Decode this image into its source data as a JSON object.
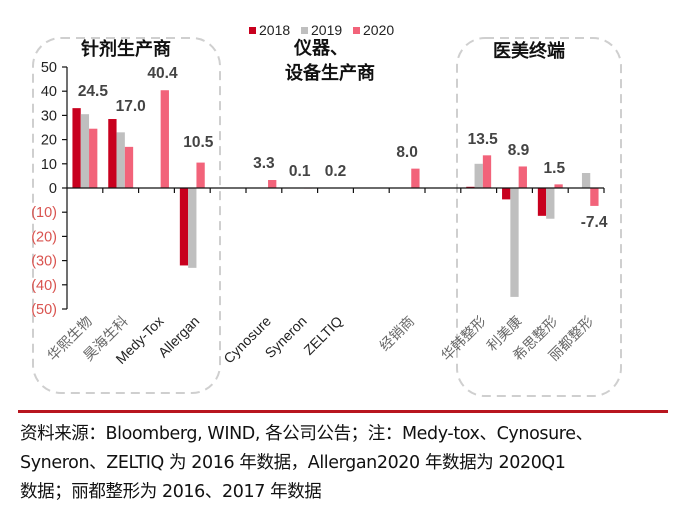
{
  "chart_data": {
    "type": "bar",
    "title": "",
    "xlabel": "",
    "ylabel": "",
    "ylim": [
      -50,
      50
    ],
    "yticks": [
      50,
      40,
      30,
      20,
      10,
      0,
      -10,
      -20,
      -30,
      -40,
      -50
    ],
    "ytick_labels": [
      "50",
      "40",
      "30",
      "20",
      "10",
      "0",
      "(10)",
      "(20)",
      "(30)",
      "(40)",
      "(50)"
    ],
    "grid": false,
    "legend_position": "top-center",
    "categories": [
      "华熙生物",
      "昊海生科",
      "Medy-Tox",
      "Allergan",
      "",
      "Cynosure",
      "Syneron",
      "ZELTIQ",
      "",
      "经销商",
      "",
      "华韩整形",
      "利美康",
      "希思整形",
      "丽都整形"
    ],
    "series": [
      {
        "name": "2018",
        "color": "#c8001e",
        "values": [
          33.0,
          28.5,
          null,
          -32.0,
          null,
          null,
          null,
          null,
          null,
          null,
          null,
          0.5,
          -4.7,
          -11.5,
          null
        ]
      },
      {
        "name": "2019",
        "color": "#bfbfbf",
        "values": [
          30.5,
          23.0,
          null,
          -33.0,
          null,
          null,
          null,
          null,
          null,
          null,
          null,
          10.0,
          -45.0,
          -12.7,
          6.2
        ]
      },
      {
        "name": "2020",
        "color": "#f2637a",
        "values": [
          24.5,
          17.0,
          40.4,
          10.5,
          null,
          3.3,
          0.1,
          0.2,
          null,
          8.0,
          null,
          13.5,
          8.9,
          1.5,
          -7.4
        ]
      }
    ],
    "data_labels": [
      {
        "category": "华熙生物",
        "series": "2020",
        "text": "24.5"
      },
      {
        "category": "昊海生科",
        "series": "2020",
        "text": "17.0"
      },
      {
        "category": "Medy-Tox",
        "series": "2020",
        "text": "40.4"
      },
      {
        "category": "Allergan",
        "series": "2020",
        "text": "10.5"
      },
      {
        "category": "Cynosure",
        "series": "2020",
        "text": "3.3"
      },
      {
        "category": "Syneron",
        "series": "2020",
        "text": "0.1"
      },
      {
        "category": "ZELTIQ",
        "series": "2020",
        "text": "0.2"
      },
      {
        "category": "经销商",
        "series": "2020",
        "text": "8.0"
      },
      {
        "category": "华韩整形",
        "series": "2020",
        "text": "13.5"
      },
      {
        "category": "利美康",
        "series": "2020",
        "text": "8.9"
      },
      {
        "category": "希思整形",
        "series": "2020",
        "text": "1.5"
      },
      {
        "category": "丽都整形",
        "series": "2020",
        "text": "-7.4"
      }
    ],
    "annotations": [
      {
        "text": "针剂生产商",
        "group_categories": [
          "华熙生物",
          "昊海生科",
          "Medy-Tox",
          "Allergan"
        ],
        "boxed": true
      },
      {
        "text": "仪器、\n设备生产商",
        "group_categories": [
          "Cynosure",
          "Syneron",
          "ZELTIQ"
        ],
        "boxed": false
      },
      {
        "text": "医美终端",
        "group_categories": [
          "华韩整形",
          "利美康",
          "希思整形",
          "丽都整形"
        ],
        "boxed": true
      }
    ],
    "negative_tick_color": "#d9534f"
  },
  "note_lines": [
    "资料来源：Bloomberg, WIND, 各公司公告；注：Medy-tox、Cynosure、",
    "Syneron、ZELTIQ 为 2016 年数据，Allergan2020 年数据为 2020Q1",
    "数据；丽都整形为 2016、2017 年数据"
  ]
}
